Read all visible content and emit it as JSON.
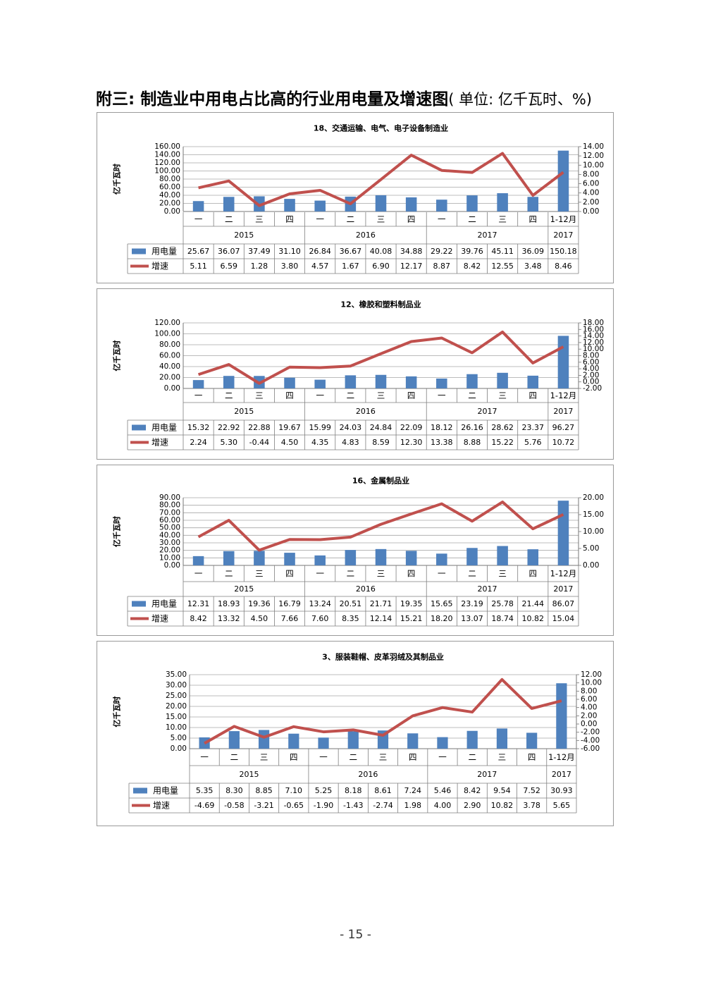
{
  "page": {
    "title": "附三: 制造业中用电占比高的行业用电量及增速图",
    "title_unit": "( 单位: 亿千瓦时、%)",
    "page_number": "- 15 -"
  },
  "colors": {
    "bar": "#4f81bd",
    "line": "#c0504d",
    "grid": "#a6a6a6"
  },
  "chart_data": [
    {
      "type": "bar",
      "title": "18、交通运输、电气、电子设备制造业",
      "ylabel": "亿千瓦时",
      "ylim": [
        0,
        160
      ],
      "yticks": [
        "160.00",
        "140.00",
        "120.00",
        "100.00",
        "80.00",
        "60.00",
        "40.00",
        "20.00",
        "0.00"
      ],
      "y2lim": [
        0,
        14
      ],
      "y2ticks": [
        "14.00",
        "12.00",
        "10.00",
        "8.00",
        "6.00",
        "4.00",
        "2.00",
        "0.00"
      ],
      "categories": [
        "一",
        "二",
        "三",
        "四",
        "一",
        "二",
        "三",
        "四",
        "一",
        "二",
        "三",
        "四",
        "1-12月"
      ],
      "years": [
        "2015",
        "2016",
        "2017",
        "2017"
      ],
      "series": [
        {
          "name": "用电量",
          "type": "bar",
          "axis": "left",
          "values": [
            25.67,
            36.07,
            37.49,
            31.1,
            26.84,
            36.67,
            40.08,
            34.88,
            29.22,
            39.76,
            45.11,
            36.09,
            150.18
          ],
          "labels": [
            "25.67",
            "36.07",
            "37.49",
            "31.10",
            "26.84",
            "36.67",
            "40.08",
            "34.88",
            "29.22",
            "39.76",
            "45.11",
            "36.09",
            "150.18"
          ]
        },
        {
          "name": "增速",
          "type": "line",
          "axis": "right",
          "values": [
            5.11,
            6.59,
            1.28,
            3.8,
            4.57,
            1.67,
            6.9,
            12.17,
            8.87,
            8.42,
            12.55,
            3.48,
            8.46
          ],
          "labels": [
            "5.11",
            "6.59",
            "1.28",
            "3.80",
            "4.57",
            "1.67",
            "6.90",
            "12.17",
            "8.87",
            "8.42",
            "12.55",
            "3.48",
            "8.46"
          ]
        }
      ]
    },
    {
      "type": "bar",
      "title": "12、橡胶和塑料制品业",
      "ylabel": "亿千瓦时",
      "ylim": [
        0,
        120
      ],
      "yticks": [
        "120.00",
        "100.00",
        "80.00",
        "60.00",
        "40.00",
        "20.00",
        "0.00"
      ],
      "y2lim": [
        -2,
        18
      ],
      "y2ticks": [
        "18.00",
        "16.00",
        "14.00",
        "12.00",
        "10.00",
        "8.00",
        "6.00",
        "4.00",
        "2.00",
        "0.00",
        "-2.00"
      ],
      "categories": [
        "一",
        "二",
        "三",
        "四",
        "一",
        "二",
        "三",
        "四",
        "一",
        "二",
        "三",
        "四",
        "1-12月"
      ],
      "years": [
        "2015",
        "2016",
        "2017",
        "2017"
      ],
      "series": [
        {
          "name": "用电量",
          "type": "bar",
          "axis": "left",
          "values": [
            15.32,
            22.92,
            22.88,
            19.67,
            15.99,
            24.03,
            24.84,
            22.09,
            18.12,
            26.16,
            28.62,
            23.37,
            96.27
          ],
          "labels": [
            "15.32",
            "22.92",
            "22.88",
            "19.67",
            "15.99",
            "24.03",
            "24.84",
            "22.09",
            "18.12",
            "26.16",
            "28.62",
            "23.37",
            "96.27"
          ]
        },
        {
          "name": "增速",
          "type": "line",
          "axis": "right",
          "values": [
            2.24,
            5.3,
            -0.44,
            4.5,
            4.35,
            4.83,
            8.59,
            12.3,
            13.38,
            8.88,
            15.22,
            5.76,
            10.72
          ],
          "labels": [
            "2.24",
            "5.30",
            "-0.44",
            "4.50",
            "4.35",
            "4.83",
            "8.59",
            "12.30",
            "13.38",
            "8.88",
            "15.22",
            "5.76",
            "10.72"
          ]
        }
      ]
    },
    {
      "type": "bar",
      "title": "16、金属制品业",
      "ylabel": "亿千瓦时",
      "ylim": [
        0,
        90
      ],
      "yticks": [
        "90.00",
        "80.00",
        "70.00",
        "60.00",
        "50.00",
        "40.00",
        "30.00",
        "20.00",
        "10.00",
        "0.00"
      ],
      "y2lim": [
        0,
        20
      ],
      "y2ticks": [
        "20.00",
        "15.00",
        "10.00",
        "5.00",
        "0.00"
      ],
      "categories": [
        "一",
        "二",
        "三",
        "四",
        "一",
        "二",
        "三",
        "四",
        "一",
        "二",
        "三",
        "四",
        "1-12月"
      ],
      "years": [
        "2015",
        "2016",
        "2017",
        "2017"
      ],
      "series": [
        {
          "name": "用电量",
          "type": "bar",
          "axis": "left",
          "values": [
            12.31,
            18.93,
            19.36,
            16.79,
            13.24,
            20.51,
            21.71,
            19.35,
            15.65,
            23.19,
            25.78,
            21.44,
            86.07
          ],
          "labels": [
            "12.31",
            "18.93",
            "19.36",
            "16.79",
            "13.24",
            "20.51",
            "21.71",
            "19.35",
            "15.65",
            "23.19",
            "25.78",
            "21.44",
            "86.07"
          ]
        },
        {
          "name": "增速",
          "type": "line",
          "axis": "right",
          "values": [
            8.42,
            13.32,
            4.5,
            7.66,
            7.6,
            8.35,
            12.14,
            15.21,
            18.2,
            13.07,
            18.74,
            10.82,
            15.04
          ],
          "labels": [
            "8.42",
            "13.32",
            "4.50",
            "7.66",
            "7.60",
            "8.35",
            "12.14",
            "15.21",
            "18.20",
            "13.07",
            "18.74",
            "10.82",
            "15.04"
          ]
        }
      ]
    },
    {
      "type": "bar",
      "title": "3、服装鞋帽、皮革羽绒及其制品业",
      "ylabel": "亿千瓦时",
      "ylim": [
        0,
        35
      ],
      "yticks": [
        "35.00",
        "30.00",
        "25.00",
        "20.00",
        "15.00",
        "10.00",
        "5.00",
        "0.00"
      ],
      "y2lim": [
        -6,
        12
      ],
      "y2ticks": [
        "12.00",
        "10.00",
        "8.00",
        "6.00",
        "4.00",
        "2.00",
        "0.00",
        "-2.00",
        "-4.00",
        "-6.00"
      ],
      "categories": [
        "一",
        "二",
        "三",
        "四",
        "一",
        "二",
        "三",
        "四",
        "一",
        "二",
        "三",
        "四",
        "1-12月"
      ],
      "years": [
        "2015",
        "2016",
        "2017",
        "2017"
      ],
      "series": [
        {
          "name": "用电量",
          "type": "bar",
          "axis": "left",
          "values": [
            5.35,
            8.3,
            8.85,
            7.1,
            5.25,
            8.18,
            8.61,
            7.24,
            5.46,
            8.42,
            9.54,
            7.52,
            30.93
          ],
          "labels": [
            "5.35",
            "8.30",
            "8.85",
            "7.10",
            "5.25",
            "8.18",
            "8.61",
            "7.24",
            "5.46",
            "8.42",
            "9.54",
            "7.52",
            "30.93"
          ]
        },
        {
          "name": "增速",
          "type": "line",
          "axis": "right",
          "values": [
            -4.69,
            -0.58,
            -3.21,
            -0.65,
            -1.9,
            -1.43,
            -2.74,
            1.98,
            4.0,
            2.9,
            10.82,
            3.78,
            5.65
          ],
          "labels": [
            "-4.69",
            "-0.58",
            "-3.21",
            "-0.65",
            "-1.90",
            "-1.43",
            "-2.74",
            "1.98",
            "4.00",
            "2.90",
            "10.82",
            "3.78",
            "5.65"
          ]
        }
      ]
    }
  ]
}
